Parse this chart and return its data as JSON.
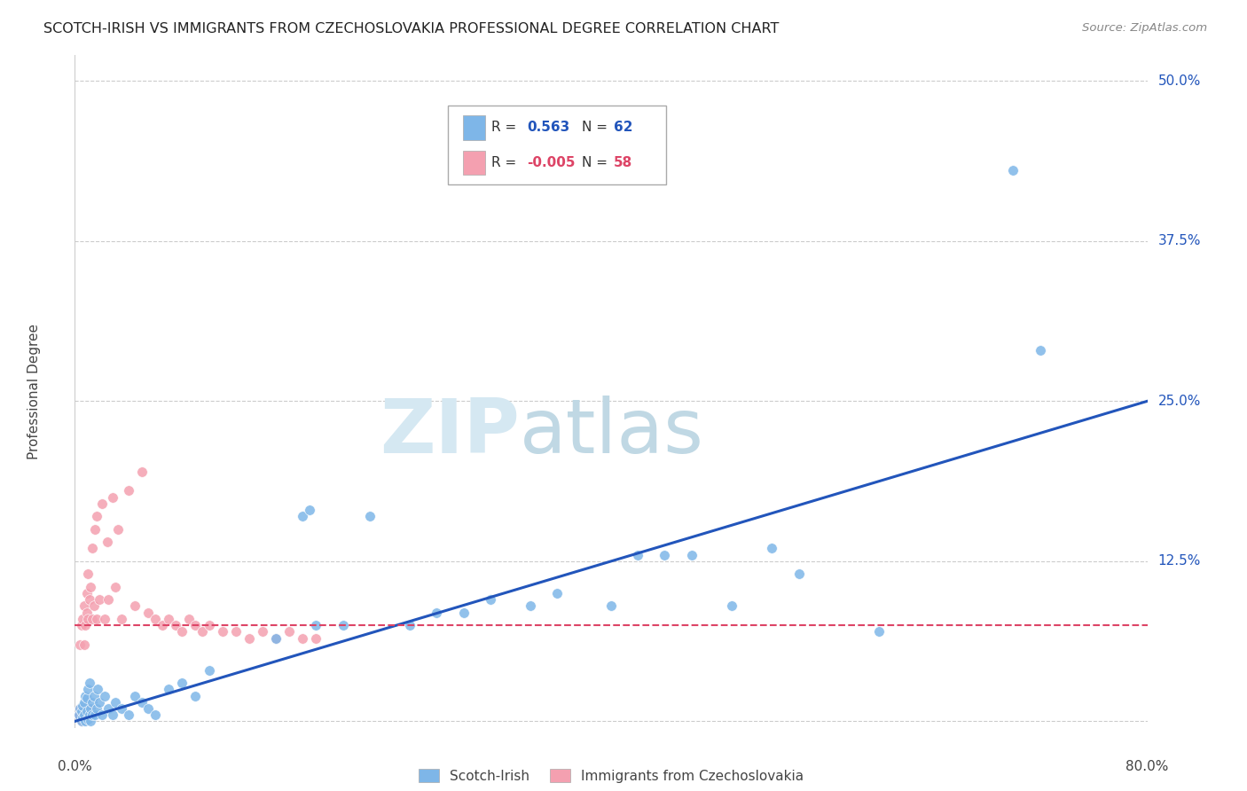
{
  "title": "SCOTCH-IRISH VS IMMIGRANTS FROM CZECHOSLOVAKIA PROFESSIONAL DEGREE CORRELATION CHART",
  "source": "Source: ZipAtlas.com",
  "ylabel": "Professional Degree",
  "color_blue": "#7EB6E8",
  "color_pink": "#F4A0B0",
  "line_blue": "#2255BB",
  "line_pink": "#DD4466",
  "xmin": 0.0,
  "xmax": 0.8,
  "ymin": -0.005,
  "ymax": 0.52,
  "ytick_vals": [
    0.0,
    0.125,
    0.25,
    0.375,
    0.5
  ],
  "ytick_labels": [
    "",
    "12.5%",
    "25.0%",
    "37.5%",
    "50.0%"
  ],
  "si_x": [
    0.003,
    0.004,
    0.005,
    0.005,
    0.006,
    0.006,
    0.007,
    0.007,
    0.008,
    0.008,
    0.009,
    0.009,
    0.01,
    0.01,
    0.011,
    0.011,
    0.012,
    0.012,
    0.013,
    0.013,
    0.014,
    0.015,
    0.016,
    0.017,
    0.018,
    0.02,
    0.022,
    0.025,
    0.028,
    0.03,
    0.035,
    0.04,
    0.045,
    0.05,
    0.055,
    0.06,
    0.07,
    0.08,
    0.09,
    0.1,
    0.15,
    0.17,
    0.175,
    0.18,
    0.2,
    0.22,
    0.25,
    0.27,
    0.29,
    0.31,
    0.34,
    0.36,
    0.4,
    0.42,
    0.44,
    0.46,
    0.49,
    0.52,
    0.54,
    0.6,
    0.7,
    0.72
  ],
  "si_y": [
    0.005,
    0.01,
    0.0,
    0.008,
    0.003,
    0.012,
    0.005,
    0.015,
    0.0,
    0.02,
    0.008,
    0.018,
    0.002,
    0.025,
    0.005,
    0.03,
    0.0,
    0.01,
    0.005,
    0.015,
    0.02,
    0.005,
    0.01,
    0.025,
    0.015,
    0.005,
    0.02,
    0.01,
    0.005,
    0.015,
    0.01,
    0.005,
    0.02,
    0.015,
    0.01,
    0.005,
    0.025,
    0.03,
    0.02,
    0.04,
    0.065,
    0.16,
    0.165,
    0.075,
    0.075,
    0.16,
    0.075,
    0.085,
    0.085,
    0.095,
    0.09,
    0.1,
    0.09,
    0.13,
    0.13,
    0.13,
    0.09,
    0.135,
    0.115,
    0.07,
    0.43,
    0.29
  ],
  "cz_x": [
    0.003,
    0.004,
    0.004,
    0.005,
    0.005,
    0.006,
    0.006,
    0.007,
    0.007,
    0.007,
    0.008,
    0.008,
    0.009,
    0.009,
    0.009,
    0.01,
    0.01,
    0.01,
    0.011,
    0.011,
    0.012,
    0.012,
    0.013,
    0.013,
    0.014,
    0.015,
    0.016,
    0.016,
    0.018,
    0.02,
    0.022,
    0.024,
    0.025,
    0.028,
    0.03,
    0.032,
    0.035,
    0.04,
    0.045,
    0.05,
    0.055,
    0.06,
    0.065,
    0.07,
    0.075,
    0.08,
    0.085,
    0.09,
    0.095,
    0.1,
    0.11,
    0.12,
    0.13,
    0.14,
    0.15,
    0.16,
    0.17,
    0.18
  ],
  "cz_y": [
    0.005,
    0.01,
    0.06,
    0.0,
    0.075,
    0.005,
    0.08,
    0.01,
    0.06,
    0.09,
    0.005,
    0.075,
    0.01,
    0.085,
    0.1,
    0.005,
    0.08,
    0.115,
    0.01,
    0.095,
    0.005,
    0.105,
    0.08,
    0.135,
    0.09,
    0.15,
    0.08,
    0.16,
    0.095,
    0.17,
    0.08,
    0.14,
    0.095,
    0.175,
    0.105,
    0.15,
    0.08,
    0.18,
    0.09,
    0.195,
    0.085,
    0.08,
    0.075,
    0.08,
    0.075,
    0.07,
    0.08,
    0.075,
    0.07,
    0.075,
    0.07,
    0.07,
    0.065,
    0.07,
    0.065,
    0.07,
    0.065,
    0.065
  ],
  "si_line_x": [
    0.0,
    0.8
  ],
  "si_line_y": [
    0.0,
    0.25
  ],
  "cz_line_x": [
    0.0,
    0.8
  ],
  "cz_line_y": [
    0.075,
    0.075
  ]
}
